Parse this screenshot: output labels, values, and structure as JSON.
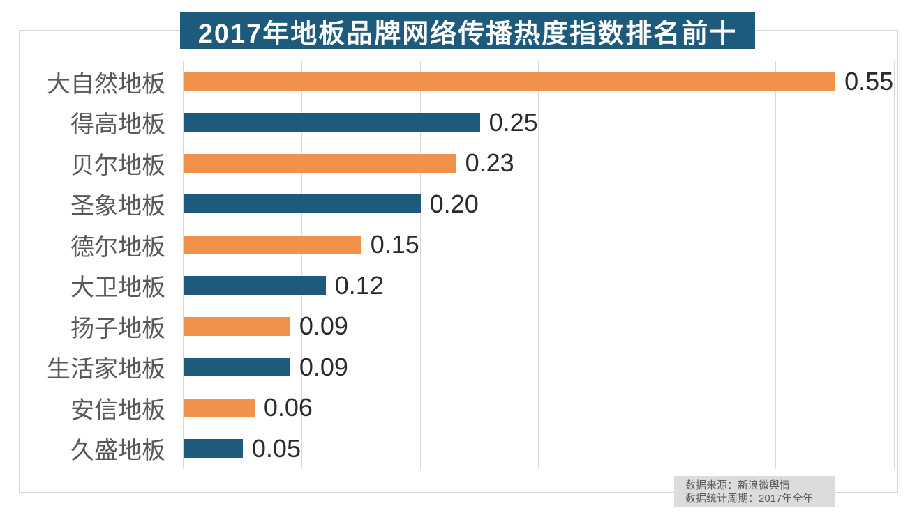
{
  "chart_data": {
    "type": "bar",
    "orientation": "horizontal",
    "title": "2017年地板品牌网络传播热度指数排名前十",
    "categories": [
      "大自然地板",
      "得高地板",
      "贝尔地板",
      "圣象地板",
      "德尔地板",
      "大卫地板",
      "扬子地板",
      "生活家地板",
      "安信地板",
      "久盛地板"
    ],
    "values": [
      0.55,
      0.25,
      0.23,
      0.2,
      0.15,
      0.12,
      0.09,
      0.09,
      0.06,
      0.05
    ],
    "value_label_decimals": 2,
    "xlabel": "",
    "ylabel": "",
    "xlim": [
      0,
      0.6
    ],
    "grid_step": 0.1,
    "grid": true,
    "legend": false,
    "value_labels_shown": true
  },
  "footer": {
    "line1": "数据来源：新浪微舆情",
    "line2": "数据统计周期：2017年全年"
  },
  "colors": {
    "bar_orange": "#f0914c",
    "bar_blue": "#1e5a7b",
    "title_bg": "#1e5a7c",
    "title_text": "#ffffff",
    "gridline": "#d9d9d9",
    "border": "#d6d6d6",
    "category_label": "#595959",
    "value_label": "#2b2b2b",
    "footer_bg": "#dcdcdc",
    "footer_text": "#595959"
  }
}
